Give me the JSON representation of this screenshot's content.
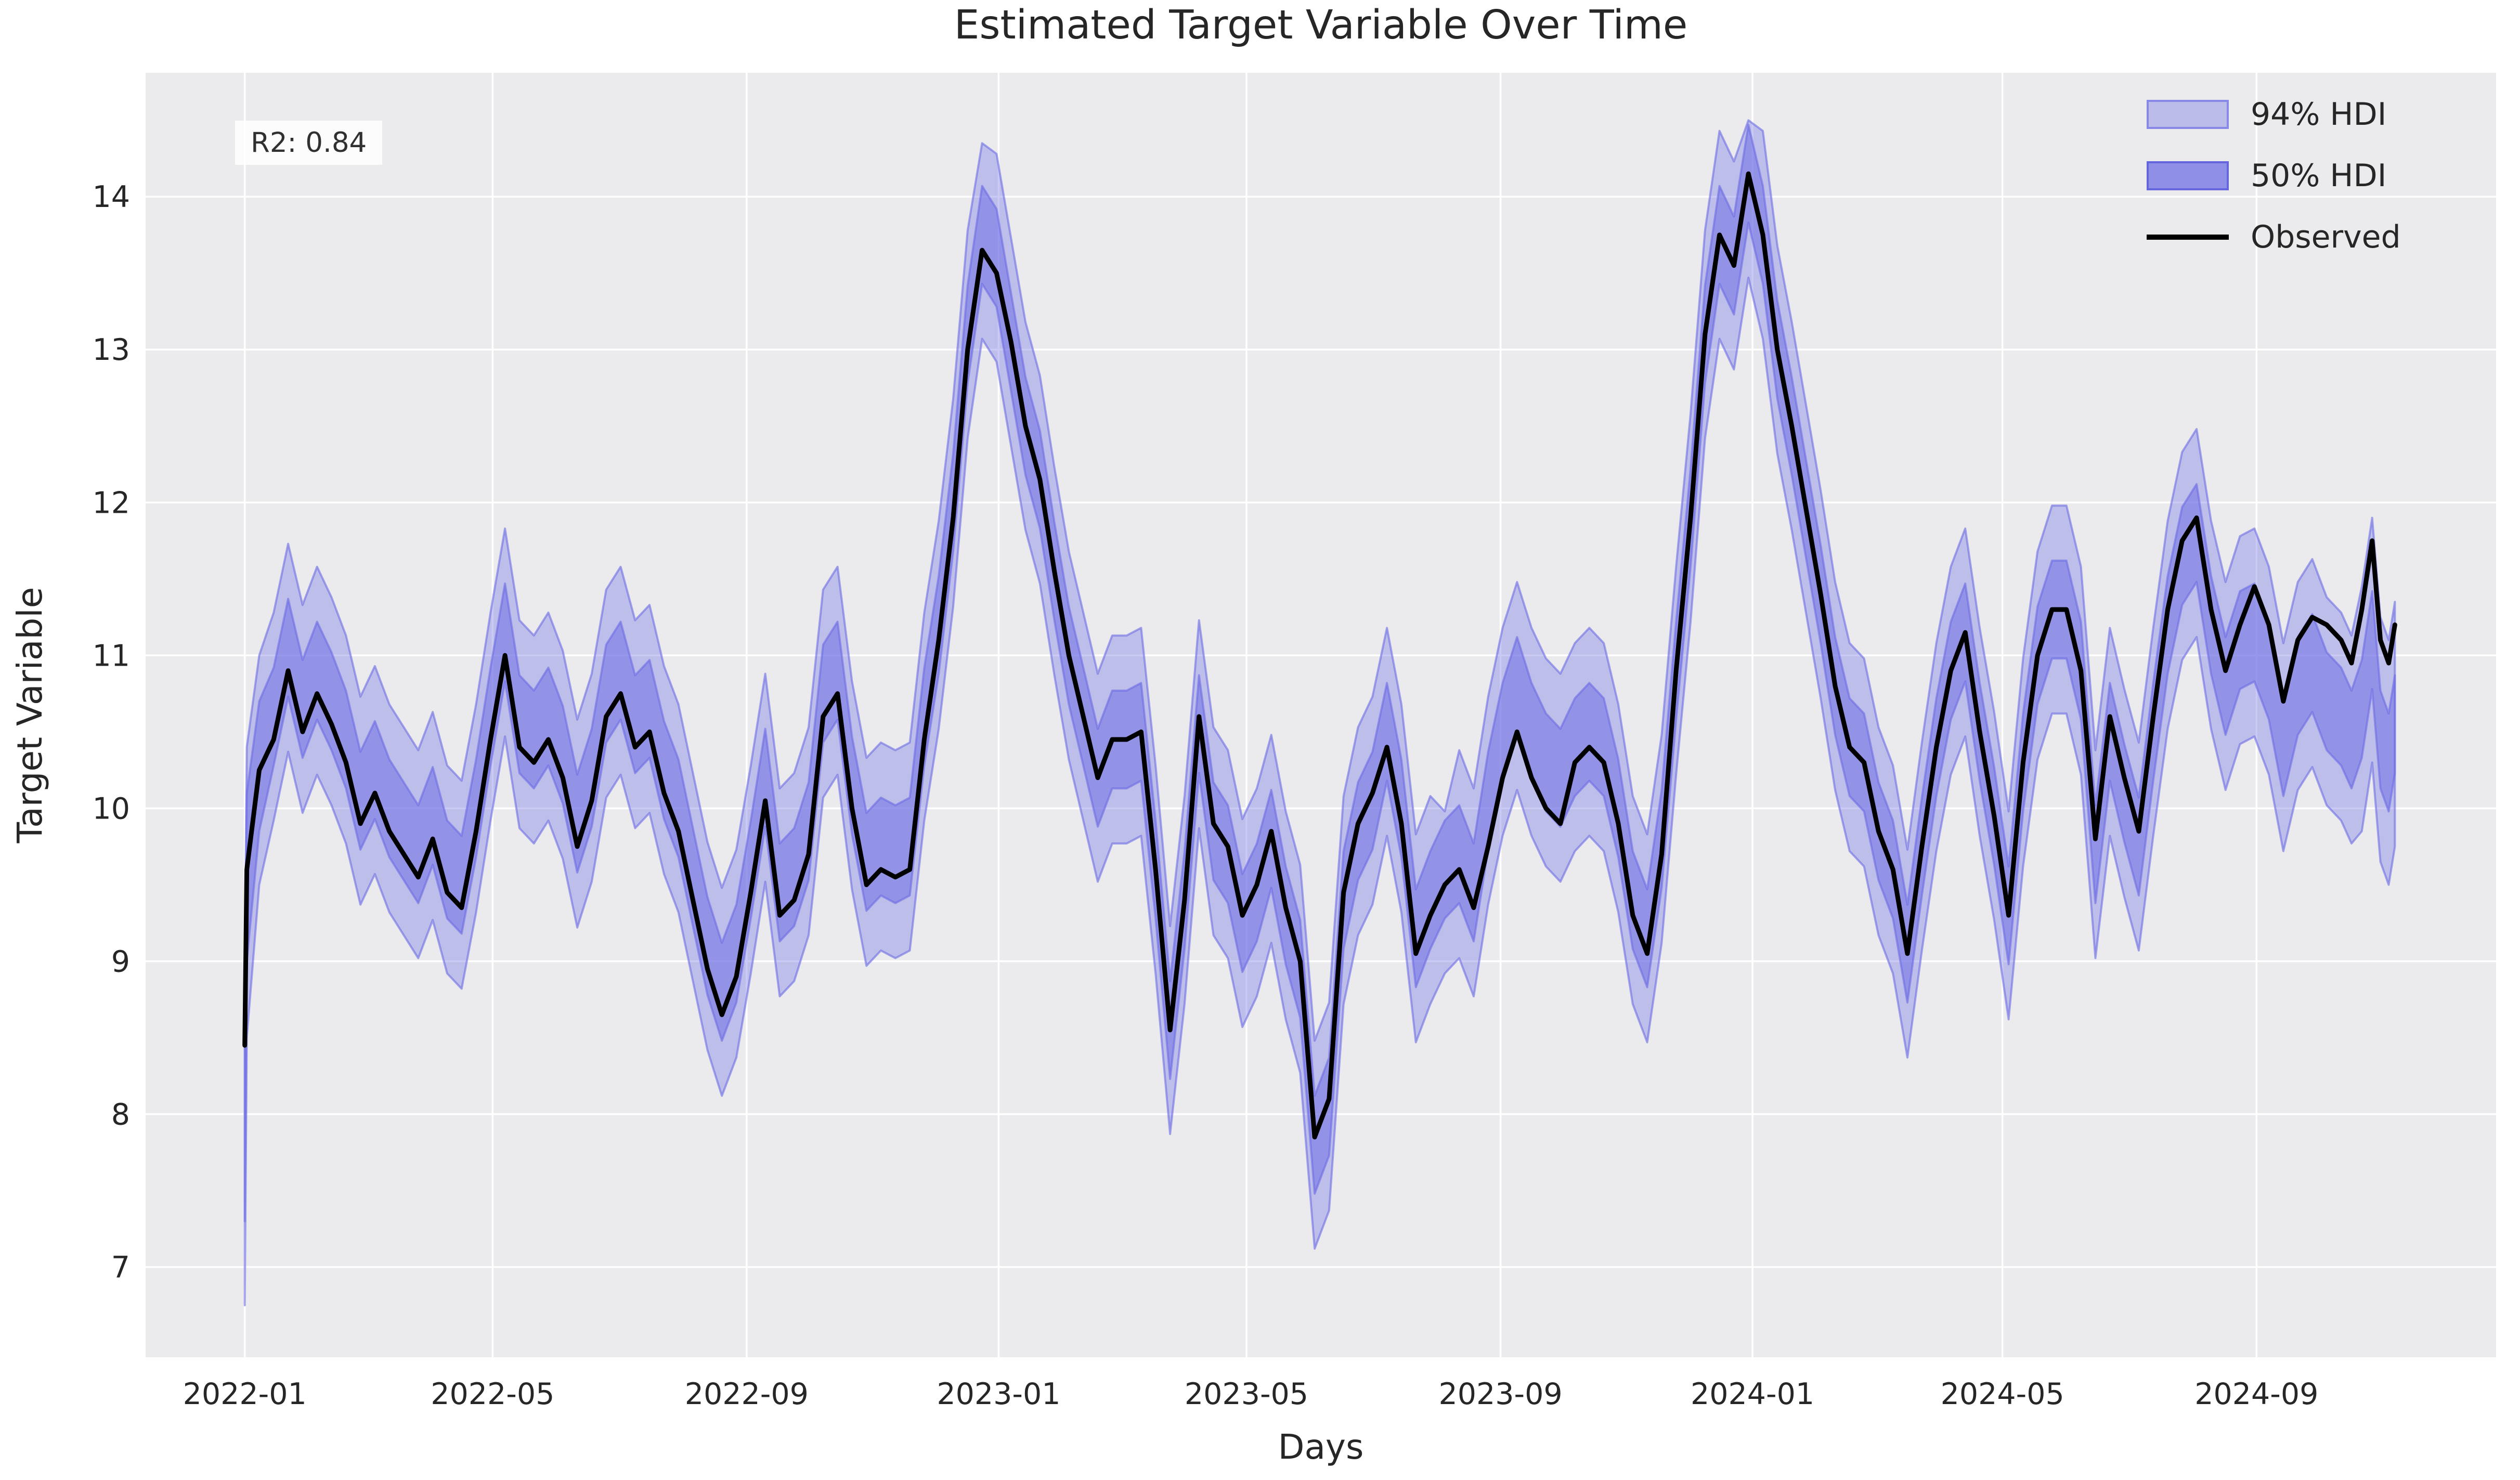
{
  "figure": {
    "title": "Estimated Target Variable Over Time",
    "r2_annotation": "R2: 0.84"
  },
  "legend": {
    "items": [
      {
        "label": "94% HDI",
        "type": "band-light"
      },
      {
        "label": "50% HDI",
        "type": "band-dark"
      },
      {
        "label": "Observed",
        "type": "line"
      }
    ],
    "position": "upper right"
  },
  "chart_data": {
    "type": "line",
    "title": "Estimated Target Variable Over Time",
    "xlabel": "Days",
    "ylabel": "Target Variable",
    "grid": "on",
    "legend_position": "upper right",
    "x_unit": "days since 2022-01-01",
    "xlim_days": [
      -48,
      1090
    ],
    "ylim": [
      6.41,
      14.81
    ],
    "x_ticks": [
      {
        "day": 0,
        "label": "2022-01"
      },
      {
        "day": 120,
        "label": "2022-05"
      },
      {
        "day": 243,
        "label": "2022-09"
      },
      {
        "day": 365,
        "label": "2023-01"
      },
      {
        "day": 485,
        "label": "2023-05"
      },
      {
        "day": 608,
        "label": "2023-09"
      },
      {
        "day": 730,
        "label": "2024-01"
      },
      {
        "day": 851,
        "label": "2024-05"
      },
      {
        "day": 974,
        "label": "2024-09"
      }
    ],
    "y_ticks": [
      7,
      8,
      9,
      10,
      11,
      12,
      13,
      14
    ],
    "colors": {
      "figure_background": "#ffffff",
      "axes_background": "#ebebee",
      "gridline": "#ffffff",
      "observed_line": "#000000",
      "hdi_base": "#7b7be7",
      "hdi94_fill": "rgba(123,123,231,0.40)",
      "hdi50_fill": "rgba(116,116,229,0.60)",
      "hdi_edge": "rgba(108,108,228,0.60)",
      "text": "#262626"
    },
    "series": {
      "days": [
        0,
        1,
        7,
        14,
        21,
        28,
        35,
        42,
        49,
        56,
        63,
        70,
        77,
        84,
        91,
        98,
        105,
        112,
        119,
        126,
        133,
        140,
        147,
        154,
        161,
        168,
        175,
        182,
        189,
        196,
        203,
        210,
        217,
        224,
        231,
        238,
        245,
        252,
        259,
        266,
        273,
        280,
        287,
        294,
        301,
        308,
        315,
        322,
        329,
        336,
        343,
        350,
        357,
        364,
        371,
        378,
        385,
        392,
        399,
        406,
        413,
        420,
        427,
        434,
        441,
        448,
        455,
        462,
        469,
        476,
        483,
        490,
        497,
        504,
        511,
        518,
        525,
        532,
        539,
        546,
        553,
        560,
        567,
        574,
        581,
        588,
        595,
        602,
        609,
        616,
        623,
        630,
        637,
        644,
        651,
        658,
        665,
        672,
        679,
        686,
        693,
        700,
        707,
        714,
        721,
        728,
        735,
        742,
        749,
        756,
        763,
        770,
        777,
        784,
        791,
        798,
        805,
        812,
        819,
        826,
        833,
        840,
        847,
        854,
        861,
        868,
        875,
        882,
        889,
        896,
        903,
        910,
        917,
        924,
        931,
        938,
        945,
        952,
        959,
        966,
        973,
        980,
        987,
        994,
        1001,
        1008,
        1015,
        1020,
        1025,
        1030,
        1034,
        1038,
        1041
      ],
      "observed": [
        8.45,
        9.6,
        10.25,
        10.45,
        10.9,
        10.5,
        10.75,
        10.55,
        10.3,
        9.9,
        10.1,
        9.85,
        9.7,
        9.55,
        9.8,
        9.45,
        9.35,
        9.85,
        10.45,
        11.0,
        10.4,
        10.3,
        10.45,
        10.2,
        9.75,
        10.05,
        10.6,
        10.75,
        10.4,
        10.5,
        10.1,
        9.85,
        9.4,
        8.95,
        8.65,
        8.9,
        9.45,
        10.05,
        9.3,
        9.4,
        9.7,
        10.6,
        10.75,
        10.0,
        9.5,
        9.6,
        9.55,
        9.6,
        10.45,
        11.1,
        11.9,
        13.0,
        13.65,
        13.5,
        13.05,
        12.5,
        12.15,
        11.55,
        11.0,
        10.6,
        10.2,
        10.45,
        10.45,
        10.5,
        9.6,
        8.55,
        9.4,
        10.6,
        9.9,
        9.75,
        9.3,
        9.5,
        9.85,
        9.35,
        9.0,
        7.85,
        8.1,
        9.45,
        9.9,
        10.1,
        10.4,
        9.9,
        9.05,
        9.3,
        9.5,
        9.6,
        9.35,
        9.75,
        10.2,
        10.5,
        10.2,
        10.0,
        9.9,
        10.3,
        10.4,
        10.3,
        9.9,
        9.3,
        9.05,
        9.7,
        10.9,
        11.9,
        13.1,
        13.75,
        13.55,
        14.15,
        13.75,
        13.0,
        12.5,
        11.95,
        11.4,
        10.8,
        10.4,
        10.3,
        9.85,
        9.6,
        9.05,
        9.75,
        10.4,
        10.9,
        11.15,
        10.5,
        9.95,
        9.3,
        10.3,
        11.0,
        11.3,
        11.3,
        10.9,
        9.8,
        10.6,
        10.2,
        9.85,
        10.6,
        11.3,
        11.75,
        11.9,
        11.3,
        10.9,
        11.2,
        11.45,
        11.2,
        10.7,
        11.1,
        11.25,
        11.2,
        11.1,
        10.95,
        11.3,
        11.75,
        11.1,
        10.95,
        11.2
      ],
      "hdi50_low": [
        7.3,
        9.0,
        9.85,
        10.28,
        10.73,
        10.33,
        10.58,
        10.38,
        10.13,
        9.73,
        9.93,
        9.68,
        9.53,
        9.38,
        9.63,
        9.28,
        9.18,
        9.68,
        10.28,
        10.83,
        10.23,
        10.13,
        10.28,
        10.03,
        9.58,
        9.88,
        10.43,
        10.58,
        10.23,
        10.33,
        9.93,
        9.68,
        9.23,
        8.78,
        8.48,
        8.73,
        9.28,
        9.88,
        9.13,
        9.23,
        9.53,
        10.43,
        10.58,
        9.83,
        9.33,
        9.43,
        9.38,
        9.43,
        10.28,
        10.88,
        11.68,
        12.78,
        13.43,
        13.28,
        12.73,
        12.18,
        11.83,
        11.23,
        10.68,
        10.28,
        9.88,
        10.13,
        10.13,
        10.18,
        9.28,
        8.23,
        9.08,
        10.23,
        9.53,
        9.38,
        8.93,
        9.13,
        9.48,
        8.98,
        8.63,
        7.48,
        7.73,
        9.08,
        9.53,
        9.73,
        10.18,
        9.68,
        8.83,
        9.08,
        9.28,
        9.38,
        9.13,
        9.73,
        10.18,
        10.48,
        10.18,
        9.98,
        9.88,
        10.08,
        10.18,
        10.08,
        9.68,
        9.08,
        8.83,
        9.48,
        10.58,
        11.58,
        12.78,
        13.43,
        13.23,
        13.83,
        13.43,
        12.68,
        12.18,
        11.63,
        11.08,
        10.48,
        10.08,
        9.98,
        9.53,
        9.28,
        8.73,
        9.43,
        10.08,
        10.58,
        10.83,
        10.18,
        9.63,
        8.98,
        9.98,
        10.68,
        10.98,
        10.98,
        10.58,
        9.38,
        10.18,
        9.78,
        9.43,
        10.18,
        10.88,
        11.33,
        11.48,
        10.88,
        10.48,
        10.78,
        10.83,
        10.58,
        10.08,
        10.48,
        10.63,
        10.38,
        10.28,
        10.13,
        10.33,
        10.78,
        10.13,
        9.98,
        10.23
      ],
      "hdi50_high": [
        8.75,
        10.1,
        10.7,
        10.92,
        11.37,
        10.97,
        11.22,
        11.02,
        10.77,
        10.37,
        10.57,
        10.32,
        10.17,
        10.02,
        10.27,
        9.92,
        9.82,
        10.32,
        10.92,
        11.47,
        10.87,
        10.77,
        10.92,
        10.67,
        10.22,
        10.52,
        11.07,
        11.22,
        10.87,
        10.97,
        10.57,
        10.32,
        9.87,
        9.42,
        9.12,
        9.37,
        9.92,
        10.52,
        9.77,
        9.87,
        10.17,
        11.07,
        11.22,
        10.47,
        9.97,
        10.07,
        10.02,
        10.07,
        10.92,
        11.52,
        12.32,
        13.42,
        14.07,
        13.92,
        13.37,
        12.82,
        12.47,
        11.87,
        11.32,
        10.92,
        10.52,
        10.77,
        10.77,
        10.82,
        9.92,
        8.87,
        9.72,
        10.87,
        10.17,
        10.02,
        9.57,
        9.77,
        10.12,
        9.62,
        9.27,
        8.12,
        8.37,
        9.72,
        10.17,
        10.37,
        10.82,
        10.32,
        9.47,
        9.72,
        9.92,
        10.02,
        9.77,
        10.37,
        10.82,
        11.12,
        10.82,
        10.62,
        10.52,
        10.72,
        10.82,
        10.72,
        10.32,
        9.72,
        9.47,
        10.12,
        11.22,
        12.22,
        13.42,
        14.07,
        13.87,
        14.47,
        14.07,
        13.32,
        12.82,
        12.27,
        11.72,
        11.12,
        10.72,
        10.62,
        10.17,
        9.92,
        9.37,
        10.07,
        10.72,
        11.22,
        11.47,
        10.82,
        10.27,
        9.62,
        10.62,
        11.32,
        11.62,
        11.62,
        11.22,
        10.02,
        10.82,
        10.42,
        10.07,
        10.82,
        11.52,
        11.97,
        12.12,
        11.52,
        11.12,
        11.42,
        11.47,
        11.22,
        10.72,
        11.12,
        11.27,
        11.02,
        10.92,
        10.77,
        10.97,
        11.42,
        10.77,
        10.62,
        10.87
      ],
      "hdi94_low": [
        6.75,
        8.5,
        9.5,
        9.92,
        10.37,
        9.97,
        10.22,
        10.02,
        9.77,
        9.37,
        9.57,
        9.32,
        9.17,
        9.02,
        9.27,
        8.92,
        8.82,
        9.32,
        9.92,
        10.47,
        9.87,
        9.77,
        9.92,
        9.67,
        9.22,
        9.52,
        10.07,
        10.22,
        9.87,
        9.97,
        9.57,
        9.32,
        8.87,
        8.42,
        8.12,
        8.37,
        8.92,
        9.52,
        8.77,
        8.87,
        9.17,
        10.07,
        10.22,
        9.47,
        8.97,
        9.07,
        9.02,
        9.07,
        9.92,
        10.52,
        11.32,
        12.42,
        13.07,
        12.92,
        12.37,
        11.82,
        11.47,
        10.87,
        10.32,
        9.92,
        9.52,
        9.77,
        9.77,
        9.82,
        8.92,
        7.87,
        8.72,
        9.87,
        9.17,
        9.02,
        8.57,
        8.77,
        9.12,
        8.62,
        8.27,
        7.12,
        7.37,
        8.72,
        9.17,
        9.37,
        9.82,
        9.32,
        8.47,
        8.72,
        8.92,
        9.02,
        8.77,
        9.37,
        9.82,
        10.12,
        9.82,
        9.62,
        9.52,
        9.72,
        9.82,
        9.72,
        9.32,
        8.72,
        8.47,
        9.12,
        10.22,
        11.22,
        12.42,
        13.07,
        12.87,
        13.47,
        13.07,
        12.32,
        11.82,
        11.27,
        10.72,
        10.12,
        9.72,
        9.62,
        9.17,
        8.92,
        8.37,
        9.07,
        9.72,
        10.22,
        10.47,
        9.82,
        9.27,
        8.62,
        9.62,
        10.32,
        10.62,
        10.62,
        10.22,
        9.02,
        9.82,
        9.42,
        9.07,
        9.82,
        10.52,
        10.97,
        11.12,
        10.52,
        10.12,
        10.42,
        10.47,
        10.22,
        9.72,
        10.12,
        10.27,
        10.02,
        9.92,
        9.77,
        9.85,
        10.3,
        9.65,
        9.5,
        9.75
      ],
      "hdi94_high": [
        8.95,
        10.4,
        11.0,
        11.28,
        11.73,
        11.33,
        11.58,
        11.38,
        11.13,
        10.73,
        10.93,
        10.68,
        10.53,
        10.38,
        10.63,
        10.28,
        10.18,
        10.68,
        11.28,
        11.83,
        11.23,
        11.13,
        11.28,
        11.03,
        10.58,
        10.88,
        11.43,
        11.58,
        11.23,
        11.33,
        10.93,
        10.68,
        10.23,
        9.78,
        9.48,
        9.73,
        10.28,
        10.88,
        10.13,
        10.23,
        10.53,
        11.43,
        11.58,
        10.83,
        10.33,
        10.43,
        10.38,
        10.43,
        11.28,
        11.88,
        12.68,
        13.78,
        14.35,
        14.28,
        13.73,
        13.18,
        12.83,
        12.23,
        11.68,
        11.28,
        10.88,
        11.13,
        11.13,
        11.18,
        10.28,
        9.23,
        10.08,
        11.23,
        10.53,
        10.38,
        9.93,
        10.13,
        10.48,
        9.98,
        9.63,
        8.48,
        8.73,
        10.08,
        10.53,
        10.73,
        11.18,
        10.68,
        9.83,
        10.08,
        9.98,
        10.38,
        10.13,
        10.73,
        11.18,
        11.48,
        11.18,
        10.98,
        10.88,
        11.08,
        11.18,
        11.08,
        10.68,
        10.08,
        9.83,
        10.48,
        11.58,
        12.58,
        13.78,
        14.43,
        14.23,
        14.5,
        14.43,
        13.68,
        13.18,
        12.63,
        12.08,
        11.48,
        11.08,
        10.98,
        10.53,
        10.28,
        9.73,
        10.43,
        11.08,
        11.58,
        11.83,
        11.18,
        10.63,
        9.98,
        10.98,
        11.68,
        11.98,
        11.98,
        11.58,
        10.38,
        11.18,
        10.78,
        10.43,
        11.18,
        11.88,
        12.33,
        12.48,
        11.88,
        11.48,
        11.78,
        11.83,
        11.58,
        11.08,
        11.48,
        11.63,
        11.38,
        11.28,
        11.13,
        11.45,
        11.9,
        11.25,
        11.1,
        11.35
      ]
    }
  }
}
